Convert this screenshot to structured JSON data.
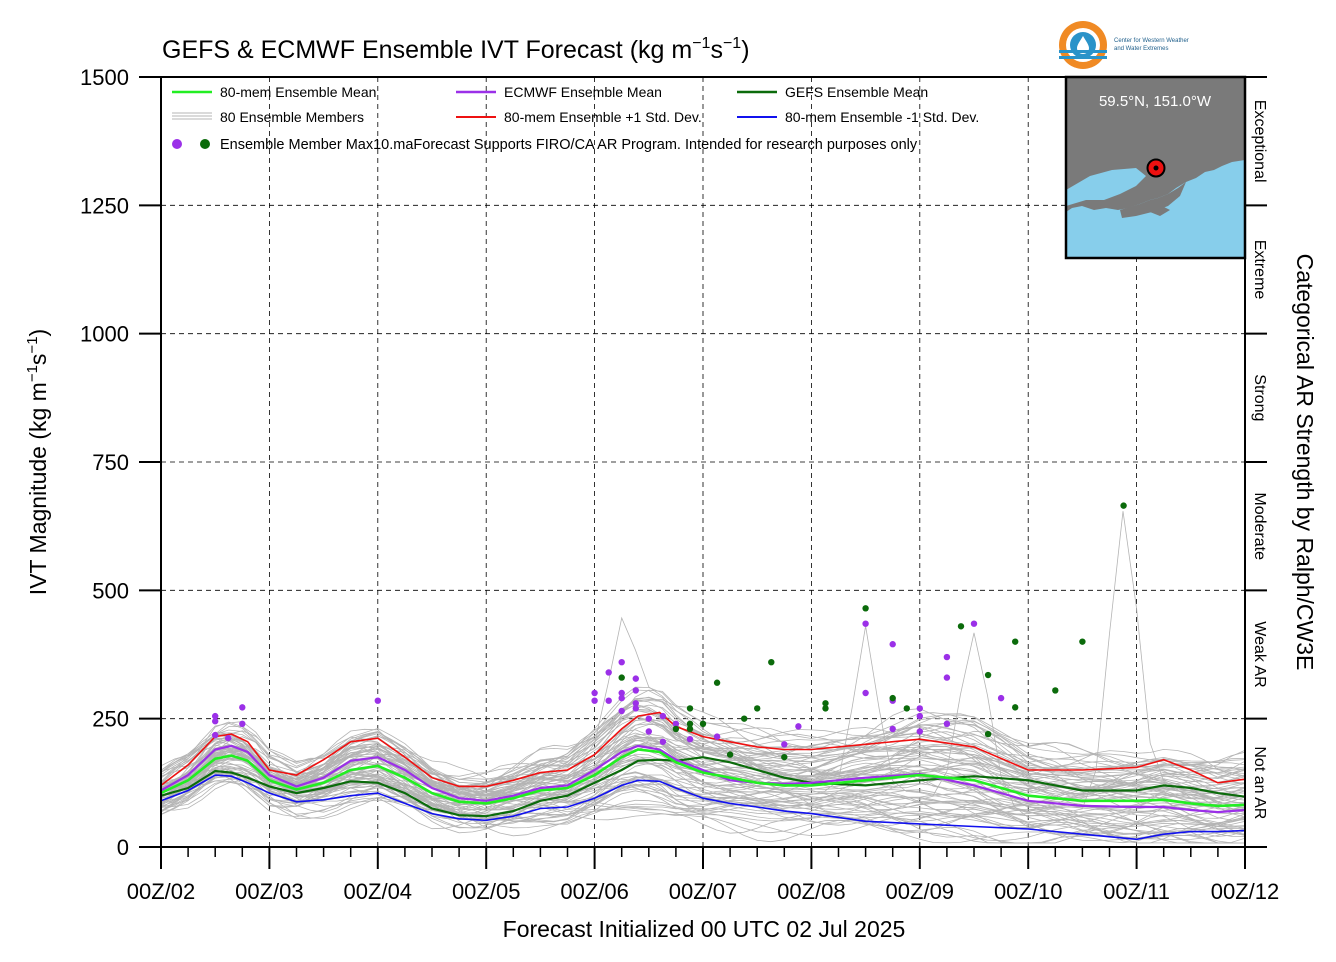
{
  "chart_data": {
    "type": "line",
    "title": "GEFS & ECMWF Ensemble IVT Forecast (kg m⁻¹s⁻¹)",
    "title_main": "GEFS & ECMWF Ensemble IVT Forecast (kg m",
    "title_unit_s": "s",
    "title_close": ")",
    "title_sup": "−1",
    "xlabel": "Forecast Initialized 00 UTC 02 Jul 2025",
    "ylabel": "IVT Magnitude (kg m",
    "ylabel_s": "s",
    "ylabel_close": ")",
    "ylabel_sup": "−1",
    "right_axis_label": "Categorical AR Strength by Ralph/CW3E",
    "x_range_days": [
      0,
      10
    ],
    "ylim": [
      0,
      1500
    ],
    "yticks": [
      0,
      250,
      500,
      750,
      1000,
      1250,
      1500
    ],
    "xtick_labels": [
      "00Z/02",
      "00Z/03",
      "00Z/04",
      "00Z/05",
      "00Z/06",
      "00Z/07",
      "00Z/08",
      "00Z/09",
      "00Z/10",
      "00Z/11",
      "00Z/12"
    ],
    "grid": true,
    "categories": [
      {
        "name": "Exceptional",
        "range": [
          1250,
          1500
        ]
      },
      {
        "name": "Extreme",
        "range": [
          1000,
          1250
        ]
      },
      {
        "name": "Strong",
        "range": [
          750,
          1000
        ]
      },
      {
        "name": "Moderate",
        "range": [
          500,
          750
        ]
      },
      {
        "name": "Weak AR",
        "range": [
          250,
          500
        ]
      },
      {
        "name": "Not an AR",
        "range": [
          0,
          250
        ]
      }
    ],
    "legend": {
      "placement": "top-left",
      "items": [
        {
          "label": "80-mem Ensemble Mean",
          "color": "#22ee22"
        },
        {
          "label": "ECMWF Ensemble Mean",
          "color": "#9b30e8"
        },
        {
          "label": "GEFS Ensemble Mean",
          "color": "#0b6b0b"
        },
        {
          "label": "80 Ensemble Members",
          "color": "#b4b4b4"
        },
        {
          "label": "80-mem Ensemble +1 Std. Dev.",
          "color": "#ee1111"
        },
        {
          "label": "80-mem Ensemble -1 Std. Dev.",
          "color": "#1111ee"
        }
      ],
      "max_label": "Ensemble Member Max",
      "note": "10.maForecast Supports FIRO/CA AR Program. Intended for research purposes only"
    },
    "inset": {
      "label": "59.5°N, 151.0°W",
      "lat": 59.5,
      "lon": -151.0
    },
    "logo_text": [
      "Center for Western Weather",
      "and Water Extremes"
    ],
    "series": [
      {
        "name": "80-mem Ensemble Mean",
        "color": "#22ee22",
        "x": [
          0,
          0.25,
          0.5,
          0.65,
          0.8,
          1.0,
          1.25,
          1.5,
          1.75,
          2.0,
          2.25,
          2.5,
          2.75,
          3.0,
          3.25,
          3.5,
          3.75,
          4.0,
          4.25,
          4.4,
          4.6,
          4.75,
          5.0,
          5.25,
          5.5,
          5.75,
          6.0,
          6.5,
          7.0,
          7.5,
          8.0,
          8.5,
          9.0,
          9.25,
          9.5,
          9.75,
          10.0
        ],
        "y": [
          105,
          130,
          172,
          178,
          168,
          130,
          112,
          125,
          150,
          158,
          135,
          105,
          88,
          85,
          95,
          110,
          115,
          140,
          175,
          190,
          185,
          165,
          145,
          135,
          125,
          120,
          120,
          130,
          140,
          130,
          100,
          90,
          90,
          92,
          85,
          80,
          82
        ]
      },
      {
        "name": "ECMWF Ensemble Mean",
        "color": "#9b30e8",
        "x": [
          0,
          0.25,
          0.5,
          0.65,
          0.8,
          1.0,
          1.25,
          1.5,
          1.75,
          2.0,
          2.25,
          2.5,
          2.75,
          3.0,
          3.25,
          3.5,
          3.75,
          4.0,
          4.25,
          4.4,
          4.6,
          4.75,
          5.0,
          5.25,
          5.5,
          5.75,
          6.0,
          6.5,
          7.0,
          7.5,
          8.0,
          8.5,
          9.0,
          9.25,
          9.5,
          9.75,
          10.0
        ],
        "y": [
          110,
          140,
          190,
          197,
          185,
          140,
          118,
          135,
          168,
          175,
          150,
          115,
          95,
          90,
          100,
          115,
          120,
          150,
          185,
          197,
          190,
          170,
          150,
          130,
          125,
          123,
          125,
          135,
          142,
          120,
          90,
          80,
          78,
          78,
          72,
          68,
          72
        ]
      },
      {
        "name": "GEFS Ensemble Mean",
        "color": "#0b6b0b",
        "x": [
          0,
          0.25,
          0.5,
          0.65,
          0.8,
          1.0,
          1.25,
          1.5,
          1.75,
          2.0,
          2.25,
          2.5,
          2.75,
          3.0,
          3.25,
          3.5,
          3.75,
          4.0,
          4.25,
          4.4,
          4.6,
          4.75,
          5.0,
          5.25,
          5.5,
          5.75,
          6.0,
          6.5,
          7.0,
          7.5,
          8.0,
          8.5,
          9.0,
          9.25,
          9.5,
          9.75,
          10.0
        ],
        "y": [
          100,
          115,
          148,
          145,
          135,
          118,
          105,
          115,
          128,
          125,
          105,
          75,
          62,
          60,
          70,
          90,
          100,
          125,
          150,
          168,
          170,
          168,
          175,
          165,
          150,
          135,
          125,
          120,
          130,
          138,
          130,
          110,
          110,
          120,
          115,
          105,
          98
        ]
      },
      {
        "name": "80-mem Ensemble +1 Std. Dev.",
        "color": "#ee1111",
        "x": [
          0,
          0.25,
          0.5,
          0.65,
          0.8,
          1.0,
          1.25,
          1.5,
          1.75,
          2.0,
          2.25,
          2.5,
          2.75,
          3.0,
          3.25,
          3.5,
          3.75,
          4.0,
          4.25,
          4.4,
          4.6,
          4.75,
          5.0,
          5.25,
          5.5,
          5.75,
          6.0,
          6.5,
          7.0,
          7.5,
          8.0,
          8.5,
          9.0,
          9.25,
          9.5,
          9.75,
          10.0
        ],
        "y": [
          120,
          160,
          215,
          220,
          205,
          150,
          140,
          170,
          205,
          212,
          175,
          135,
          118,
          118,
          130,
          145,
          150,
          180,
          230,
          255,
          262,
          235,
          215,
          205,
          195,
          190,
          190,
          200,
          210,
          195,
          150,
          150,
          155,
          170,
          150,
          125,
          132
        ]
      },
      {
        "name": "80-mem Ensemble -1 Std. Dev.",
        "color": "#1111ee",
        "x": [
          0,
          0.25,
          0.5,
          0.65,
          0.8,
          1.0,
          1.25,
          1.5,
          1.75,
          2.0,
          2.25,
          2.5,
          2.75,
          3.0,
          3.25,
          3.5,
          3.75,
          4.0,
          4.25,
          4.4,
          4.6,
          4.75,
          5.0,
          5.25,
          5.5,
          5.75,
          6.0,
          6.5,
          7.0,
          7.5,
          8.0,
          8.5,
          9.0,
          9.25,
          9.5,
          9.75,
          10.0
        ],
        "y": [
          90,
          110,
          140,
          138,
          125,
          105,
          88,
          92,
          100,
          105,
          85,
          65,
          55,
          52,
          60,
          75,
          78,
          95,
          120,
          130,
          128,
          115,
          95,
          85,
          78,
          70,
          65,
          50,
          45,
          40,
          35,
          25,
          15,
          25,
          30,
          30,
          32
        ]
      }
    ],
    "ecmwf_max_points": [
      [
        0.5,
        255
      ],
      [
        0.5,
        245
      ],
      [
        0.5,
        218
      ],
      [
        0.62,
        212
      ],
      [
        0.75,
        272
      ],
      [
        0.75,
        240
      ],
      [
        2.0,
        285
      ],
      [
        4.0,
        300
      ],
      [
        4.0,
        285
      ],
      [
        4.13,
        340
      ],
      [
        4.13,
        285
      ],
      [
        4.25,
        360
      ],
      [
        4.25,
        300
      ],
      [
        4.25,
        290
      ],
      [
        4.25,
        265
      ],
      [
        4.38,
        328
      ],
      [
        4.38,
        305
      ],
      [
        4.38,
        280
      ],
      [
        4.38,
        270
      ],
      [
        4.5,
        250
      ],
      [
        4.5,
        225
      ],
      [
        4.63,
        255
      ],
      [
        4.63,
        205
      ],
      [
        4.75,
        240
      ],
      [
        4.88,
        210
      ],
      [
        5.13,
        215
      ],
      [
        5.75,
        200
      ],
      [
        5.88,
        235
      ],
      [
        6.5,
        435
      ],
      [
        6.5,
        300
      ],
      [
        6.75,
        395
      ],
      [
        6.75,
        285
      ],
      [
        6.75,
        230
      ],
      [
        7.0,
        270
      ],
      [
        7.0,
        255
      ],
      [
        7.0,
        225
      ],
      [
        7.25,
        370
      ],
      [
        7.25,
        330
      ],
      [
        7.25,
        240
      ],
      [
        7.5,
        435
      ],
      [
        7.75,
        290
      ]
    ],
    "gefs_max_points": [
      [
        4.25,
        330
      ],
      [
        4.75,
        230
      ],
      [
        4.88,
        270
      ],
      [
        4.88,
        240
      ],
      [
        4.88,
        230
      ],
      [
        5.0,
        240
      ],
      [
        5.13,
        320
      ],
      [
        5.25,
        180
      ],
      [
        5.38,
        250
      ],
      [
        5.5,
        270
      ],
      [
        5.63,
        360
      ],
      [
        5.75,
        175
      ],
      [
        6.13,
        280
      ],
      [
        6.13,
        270
      ],
      [
        6.5,
        465
      ],
      [
        6.75,
        290
      ],
      [
        6.88,
        270
      ],
      [
        7.38,
        430
      ],
      [
        7.63,
        335
      ],
      [
        7.63,
        220
      ],
      [
        7.88,
        400
      ],
      [
        7.88,
        272
      ],
      [
        8.25,
        305
      ],
      [
        8.5,
        400
      ],
      [
        8.88,
        665
      ]
    ]
  }
}
